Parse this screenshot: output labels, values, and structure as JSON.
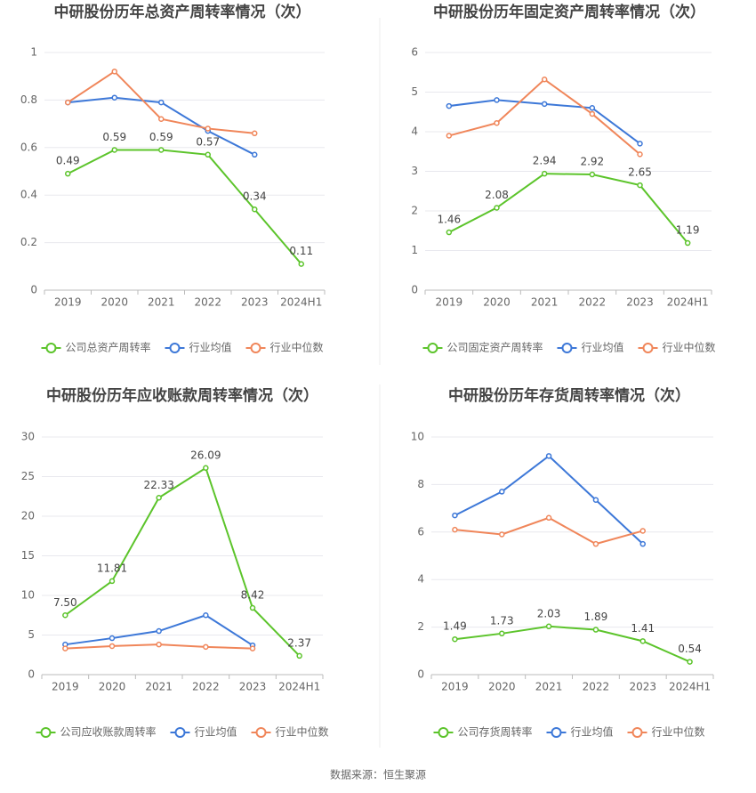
{
  "chart_data": [
    {
      "type": "line",
      "title": "中研股份历年总资产周转率情况（次）",
      "categories": [
        "2019",
        "2020",
        "2021",
        "2022",
        "2023",
        "2024H1"
      ],
      "series": [
        {
          "name": "公司总资产周转率",
          "color": "#5cc42b",
          "values": [
            0.49,
            0.59,
            0.59,
            0.57,
            0.34,
            0.11
          ]
        },
        {
          "name": "行业均值",
          "color": "#3d78d8",
          "values": [
            0.79,
            0.81,
            0.79,
            0.67,
            0.57,
            null
          ]
        },
        {
          "name": "行业中位数",
          "color": "#f0865a",
          "values": [
            0.79,
            0.92,
            0.72,
            0.68,
            0.66,
            null
          ]
        }
      ],
      "ylim": [
        0,
        1
      ],
      "yticks": [
        0,
        0.2,
        0.4,
        0.6,
        0.8,
        1
      ],
      "grid": true
    },
    {
      "type": "line",
      "title": "中研股份历年固定资产周转率情况（次）",
      "categories": [
        "2019",
        "2020",
        "2021",
        "2022",
        "2023",
        "2024H1"
      ],
      "series": [
        {
          "name": "公司固定资产周转率",
          "color": "#5cc42b",
          "values": [
            1.46,
            2.08,
            2.94,
            2.92,
            2.65,
            1.19
          ]
        },
        {
          "name": "行业均值",
          "color": "#3d78d8",
          "values": [
            4.65,
            4.8,
            4.7,
            4.6,
            3.7,
            null
          ]
        },
        {
          "name": "行业中位数",
          "color": "#f0865a",
          "values": [
            3.9,
            4.22,
            5.32,
            4.45,
            3.43,
            null
          ]
        }
      ],
      "ylim": [
        0,
        6
      ],
      "yticks": [
        0,
        1,
        2,
        3,
        4,
        5,
        6
      ],
      "grid": true
    },
    {
      "type": "line",
      "title": "中研股份历年应收账款周转率情况（次）",
      "categories": [
        "2019",
        "2020",
        "2021",
        "2022",
        "2023",
        "2024H1"
      ],
      "series": [
        {
          "name": "公司应收账款周转率",
          "color": "#5cc42b",
          "values": [
            7.5,
            11.81,
            22.33,
            26.09,
            8.42,
            2.37
          ],
          "value_labels": [
            "7.50",
            "11.81",
            "22.33",
            "26.09",
            "8.42",
            "2.37"
          ]
        },
        {
          "name": "行业均值",
          "color": "#3d78d8",
          "values": [
            3.8,
            4.6,
            5.5,
            7.5,
            3.7,
            null
          ]
        },
        {
          "name": "行业中位数",
          "color": "#f0865a",
          "values": [
            3.3,
            3.6,
            3.8,
            3.5,
            3.3,
            null
          ]
        }
      ],
      "ylim": [
        0,
        30
      ],
      "yticks": [
        0,
        5,
        10,
        15,
        20,
        25,
        30
      ],
      "grid": true
    },
    {
      "type": "line",
      "title": "中研股份历年存货周转率情况（次）",
      "categories": [
        "2019",
        "2020",
        "2021",
        "2022",
        "2023",
        "2024H1"
      ],
      "series": [
        {
          "name": "公司存货周转率",
          "color": "#5cc42b",
          "values": [
            1.49,
            1.73,
            2.03,
            1.89,
            1.41,
            0.54
          ]
        },
        {
          "name": "行业均值",
          "color": "#3d78d8",
          "values": [
            6.7,
            7.7,
            9.2,
            7.35,
            5.5,
            null
          ]
        },
        {
          "name": "行业中位数",
          "color": "#f0865a",
          "values": [
            6.1,
            5.9,
            6.6,
            5.5,
            6.05,
            null
          ]
        }
      ],
      "ylim": [
        0,
        10
      ],
      "yticks": [
        0,
        2,
        4,
        6,
        8,
        10
      ],
      "grid": true
    }
  ],
  "source": "数据来源：恒生聚源"
}
